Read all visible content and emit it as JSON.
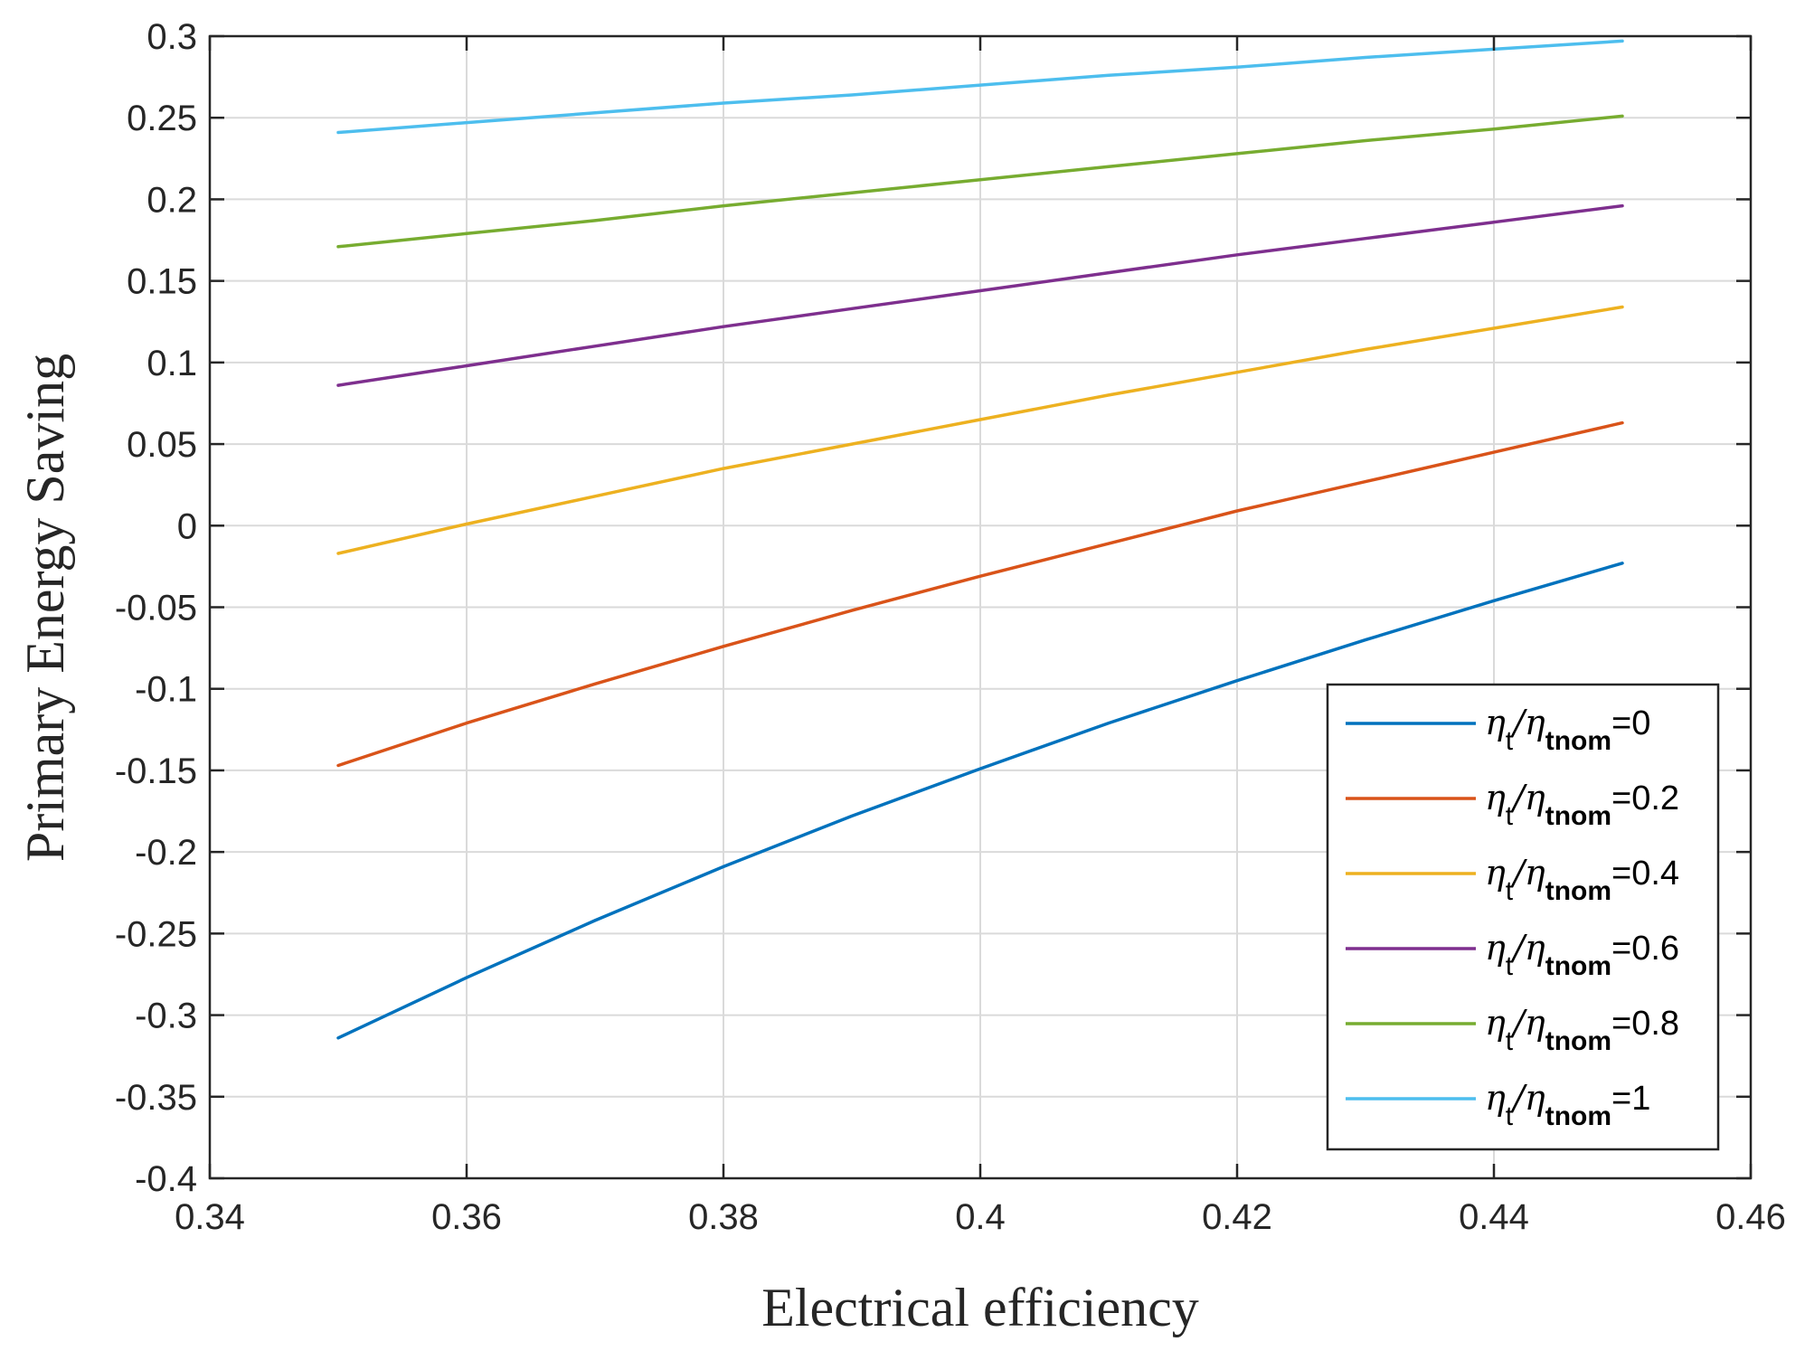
{
  "chart_data": {
    "type": "line",
    "title": "",
    "xlabel": "Electrical efficiency",
    "ylabel": "Primary Energy Saving",
    "xlim": [
      0.34,
      0.46
    ],
    "ylim": [
      -0.4,
      0.3
    ],
    "xticks": [
      0.34,
      0.36,
      0.38,
      0.4,
      0.42,
      0.44,
      0.46
    ],
    "xtick_labels": [
      "0.34",
      "0.36",
      "0.38",
      "0.4",
      "0.42",
      "0.44",
      "0.46"
    ],
    "yticks": [
      -0.4,
      -0.35,
      -0.3,
      -0.25,
      -0.2,
      -0.15,
      -0.1,
      -0.05,
      0,
      0.05,
      0.1,
      0.15,
      0.2,
      0.25,
      0.3
    ],
    "ytick_labels": [
      "-0.4",
      "-0.35",
      "-0.3",
      "-0.25",
      "-0.2",
      "-0.15",
      "-0.1",
      "-0.05",
      "0",
      "0.05",
      "0.1",
      "0.15",
      "0.2",
      "0.25",
      "0.3"
    ],
    "grid": true,
    "legend_position": "bottom-right",
    "series": [
      {
        "name": "ηt/ηtnom=0",
        "legend": {
          "eta": "η",
          "sub1": "t",
          "sub2": "tnom",
          "eq": "=0"
        },
        "color": "#0072BD",
        "x": [
          0.35,
          0.36,
          0.37,
          0.38,
          0.39,
          0.4,
          0.41,
          0.42,
          0.43,
          0.44,
          0.45
        ],
        "y": [
          -0.314,
          -0.277,
          -0.242,
          -0.209,
          -0.178,
          -0.149,
          -0.121,
          -0.095,
          -0.07,
          -0.046,
          -0.023
        ]
      },
      {
        "name": "ηt/ηtnom=0.2",
        "legend": {
          "eta": "η",
          "sub1": "t",
          "sub2": "tnom",
          "eq": "=0.2"
        },
        "color": "#D95319",
        "x": [
          0.35,
          0.36,
          0.37,
          0.38,
          0.39,
          0.4,
          0.41,
          0.42,
          0.43,
          0.44,
          0.45
        ],
        "y": [
          -0.147,
          -0.121,
          -0.097,
          -0.074,
          -0.052,
          -0.031,
          -0.011,
          0.009,
          0.027,
          0.045,
          0.063
        ]
      },
      {
        "name": "ηt/ηtnom=0.4",
        "legend": {
          "eta": "η",
          "sub1": "t",
          "sub2": "tnom",
          "eq": "=0.4"
        },
        "color": "#EDB120",
        "x": [
          0.35,
          0.36,
          0.37,
          0.38,
          0.39,
          0.4,
          0.41,
          0.42,
          0.43,
          0.44,
          0.45
        ],
        "y": [
          -0.017,
          0.001,
          0.018,
          0.035,
          0.05,
          0.065,
          0.08,
          0.094,
          0.108,
          0.121,
          0.134
        ]
      },
      {
        "name": "ηt/ηtnom=0.6",
        "legend": {
          "eta": "η",
          "sub1": "t",
          "sub2": "tnom",
          "eq": "=0.6"
        },
        "color": "#7E2F8E",
        "x": [
          0.35,
          0.36,
          0.37,
          0.38,
          0.39,
          0.4,
          0.41,
          0.42,
          0.43,
          0.44,
          0.45
        ],
        "y": [
          0.086,
          0.098,
          0.11,
          0.122,
          0.133,
          0.144,
          0.155,
          0.166,
          0.176,
          0.186,
          0.196
        ]
      },
      {
        "name": "ηt/ηtnom=0.8",
        "legend": {
          "eta": "η",
          "sub1": "t",
          "sub2": "tnom",
          "eq": "=0.8"
        },
        "color": "#77AC30",
        "x": [
          0.35,
          0.36,
          0.37,
          0.38,
          0.39,
          0.4,
          0.41,
          0.42,
          0.43,
          0.44,
          0.45
        ],
        "y": [
          0.171,
          0.179,
          0.187,
          0.196,
          0.204,
          0.212,
          0.22,
          0.228,
          0.236,
          0.243,
          0.251
        ]
      },
      {
        "name": "ηt/ηtnom=1",
        "legend": {
          "eta": "η",
          "sub1": "t",
          "sub2": "tnom",
          "eq": "=1"
        },
        "color": "#4DBEEE",
        "x": [
          0.35,
          0.36,
          0.37,
          0.38,
          0.39,
          0.4,
          0.41,
          0.42,
          0.43,
          0.44,
          0.45
        ],
        "y": [
          0.241,
          0.247,
          0.253,
          0.259,
          0.264,
          0.27,
          0.276,
          0.281,
          0.287,
          0.292,
          0.297
        ]
      }
    ]
  }
}
